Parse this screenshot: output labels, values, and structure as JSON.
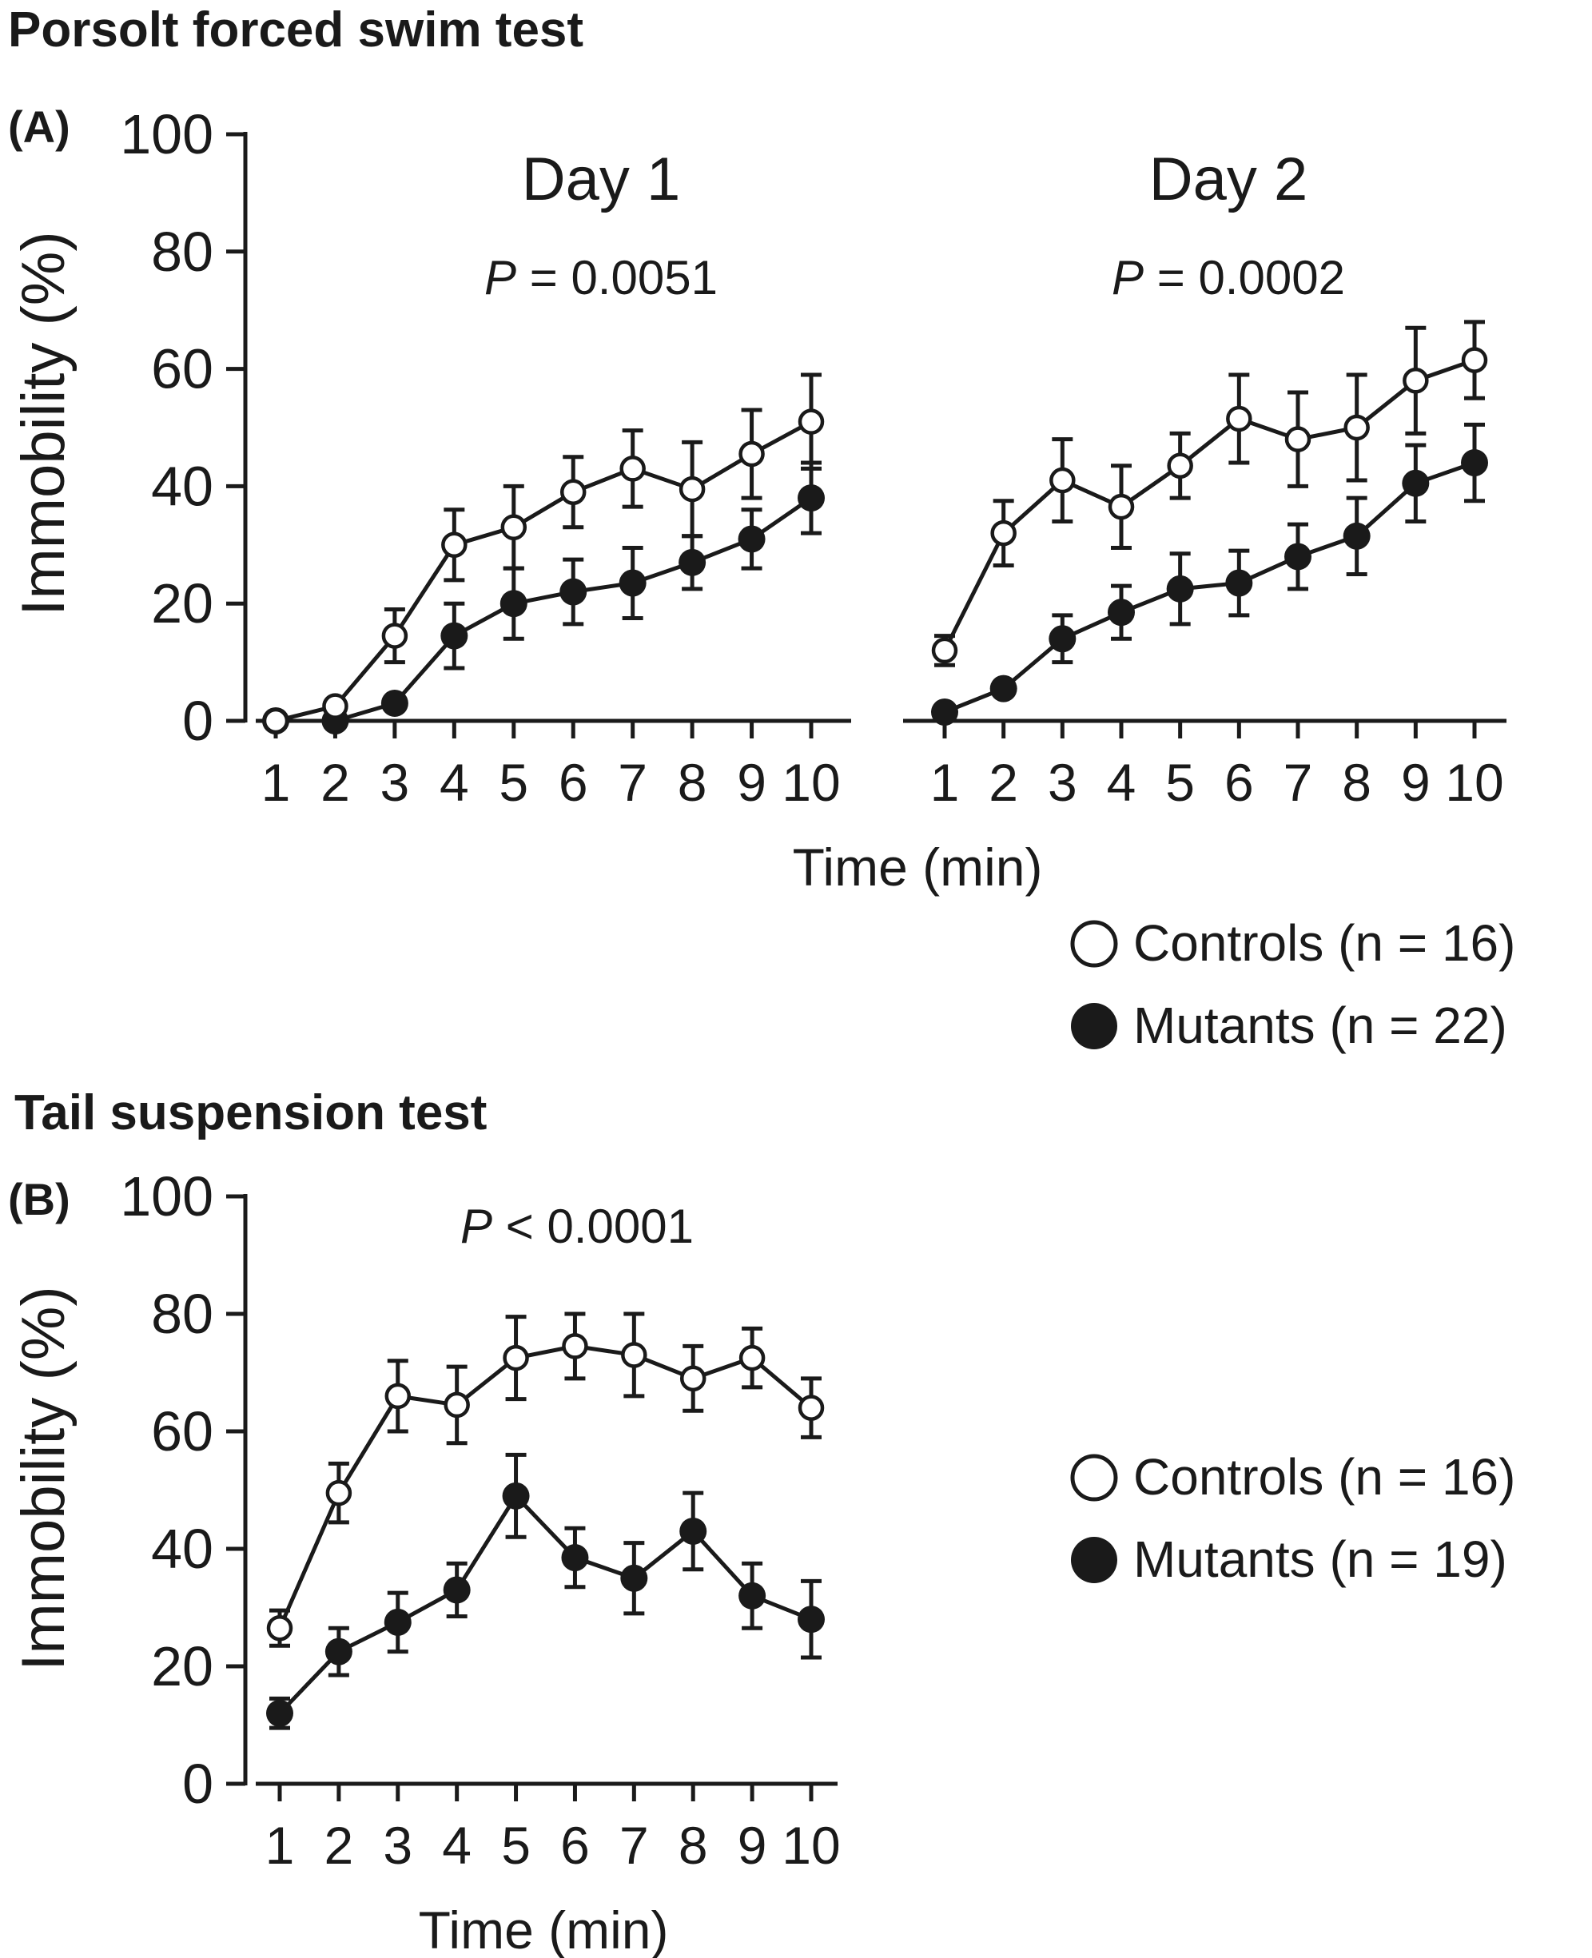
{
  "figure": {
    "section_a_title": "Porsolt forced swim test",
    "section_b_title": "Tail suspension test",
    "panel_a_label": "(A)",
    "panel_b_label": "(B)"
  },
  "chart_data": [
    {
      "type": "line",
      "panel": "A",
      "title": "Day 1",
      "annotation": "P = 0.0051",
      "ylabel": "Immobility (%)",
      "xlabel": "Time (min)",
      "ylim": [
        0,
        100
      ],
      "yticks": [
        0,
        20,
        40,
        60,
        80,
        100
      ],
      "x": [
        1,
        2,
        3,
        4,
        5,
        6,
        7,
        8,
        9,
        10
      ],
      "series": [
        {
          "name": "Controls",
          "marker": "open-circle",
          "values": [
            0,
            2.5,
            14.5,
            30,
            33,
            39,
            43,
            39.5,
            45.5,
            51
          ],
          "errors": [
            0,
            0.8,
            4.5,
            6,
            7,
            6,
            6.5,
            8,
            7.5,
            8
          ]
        },
        {
          "name": "Mutants",
          "marker": "filled-circle",
          "values": [
            0,
            0,
            3,
            14.5,
            20,
            22,
            23.5,
            27,
            31,
            38
          ],
          "errors": [
            0,
            0,
            1,
            5.5,
            6,
            5.5,
            6,
            4.5,
            5,
            6
          ]
        }
      ]
    },
    {
      "type": "line",
      "panel": "A",
      "title": "Day 2",
      "annotation": "P = 0.0002",
      "x": [
        1,
        2,
        3,
        4,
        5,
        6,
        7,
        8,
        9,
        10
      ],
      "ylim": [
        0,
        100
      ],
      "series": [
        {
          "name": "Controls",
          "marker": "open-circle",
          "values": [
            12,
            32,
            41,
            36.5,
            43.5,
            51.5,
            48,
            50,
            58,
            61.5
          ],
          "errors": [
            2.5,
            5.5,
            7,
            7,
            5.5,
            7.5,
            8,
            9,
            9,
            6.5
          ]
        },
        {
          "name": "Mutants",
          "marker": "filled-circle",
          "values": [
            1.5,
            5.5,
            14,
            18.5,
            22.5,
            23.5,
            28,
            31.5,
            40.5,
            44
          ],
          "errors": [
            0.5,
            1,
            4,
            4.5,
            6,
            5.5,
            5.5,
            6.5,
            6.5,
            6.5
          ]
        }
      ]
    },
    {
      "type": "line",
      "panel": "B",
      "title": "",
      "annotation": "P < 0.0001",
      "ylabel": "Immobility (%)",
      "xlabel": "Time (min)",
      "ylim": [
        0,
        100
      ],
      "yticks": [
        0,
        20,
        40,
        60,
        80,
        100
      ],
      "x": [
        1,
        2,
        3,
        4,
        5,
        6,
        7,
        8,
        9,
        10
      ],
      "series": [
        {
          "name": "Controls",
          "marker": "open-circle",
          "values": [
            26.5,
            49.5,
            66,
            64.5,
            72.5,
            74.5,
            73,
            69,
            72.5,
            64
          ],
          "errors": [
            3,
            5,
            6,
            6.5,
            7,
            5.5,
            7,
            5.5,
            5,
            5
          ]
        },
        {
          "name": "Mutants",
          "marker": "filled-circle",
          "values": [
            12,
            22.5,
            27.5,
            33,
            49,
            38.5,
            35,
            43,
            32,
            28
          ],
          "errors": [
            2.5,
            4,
            5,
            4.5,
            7,
            5,
            6,
            6.5,
            5.5,
            6.5
          ]
        }
      ]
    }
  ],
  "legend_a": {
    "controls": "Controls (n = 16)",
    "mutants": "Mutants (n = 22)"
  },
  "legend_b": {
    "controls": "Controls (n = 16)",
    "mutants": "Mutants (n = 19)"
  }
}
